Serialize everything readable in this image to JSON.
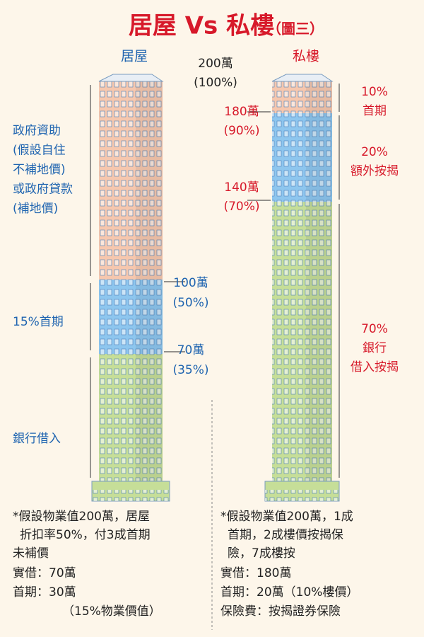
{
  "header": {
    "title": "居屋 Vs 私樓",
    "subtitle": "（圖三）"
  },
  "hos": {
    "label": "居屋",
    "top_amount": "200萬",
    "top_percent": "(100%)",
    "subsidy_lines": [
      "政府資助",
      "(假設自住",
      "不補地價)",
      "或政府貸款",
      "(補地價)"
    ],
    "deposit_label": "15%首期",
    "loan_label": "銀行借入",
    "mid_amount": "100萬",
    "mid_percent": "(50%)",
    "low_amount": "70萬",
    "low_percent": "(35%)",
    "notes": [
      "*假設物業值200萬，居屋",
      "折扣率50%，付3成首期",
      "未補價",
      "實借：70萬",
      "首期：30萬",
      "（15%物業價值）"
    ]
  },
  "private": {
    "label": "私樓",
    "amount_90": "180萬",
    "percent_90": "(90%)",
    "amount_70": "140萬",
    "percent_70": "(70%)",
    "deposit": [
      "10%",
      "首期"
    ],
    "extra": [
      "20%",
      "額外按揭"
    ],
    "bank": [
      "70%",
      "銀行",
      "借入按揭"
    ],
    "notes": [
      "*假設物業值200萬，1成",
      "首期，2成樓價按揭保",
      "險，7成樓按",
      "實借：180萬",
      "首期：20萬（10%樓價）",
      "保險費：按揭證券保險"
    ]
  }
}
